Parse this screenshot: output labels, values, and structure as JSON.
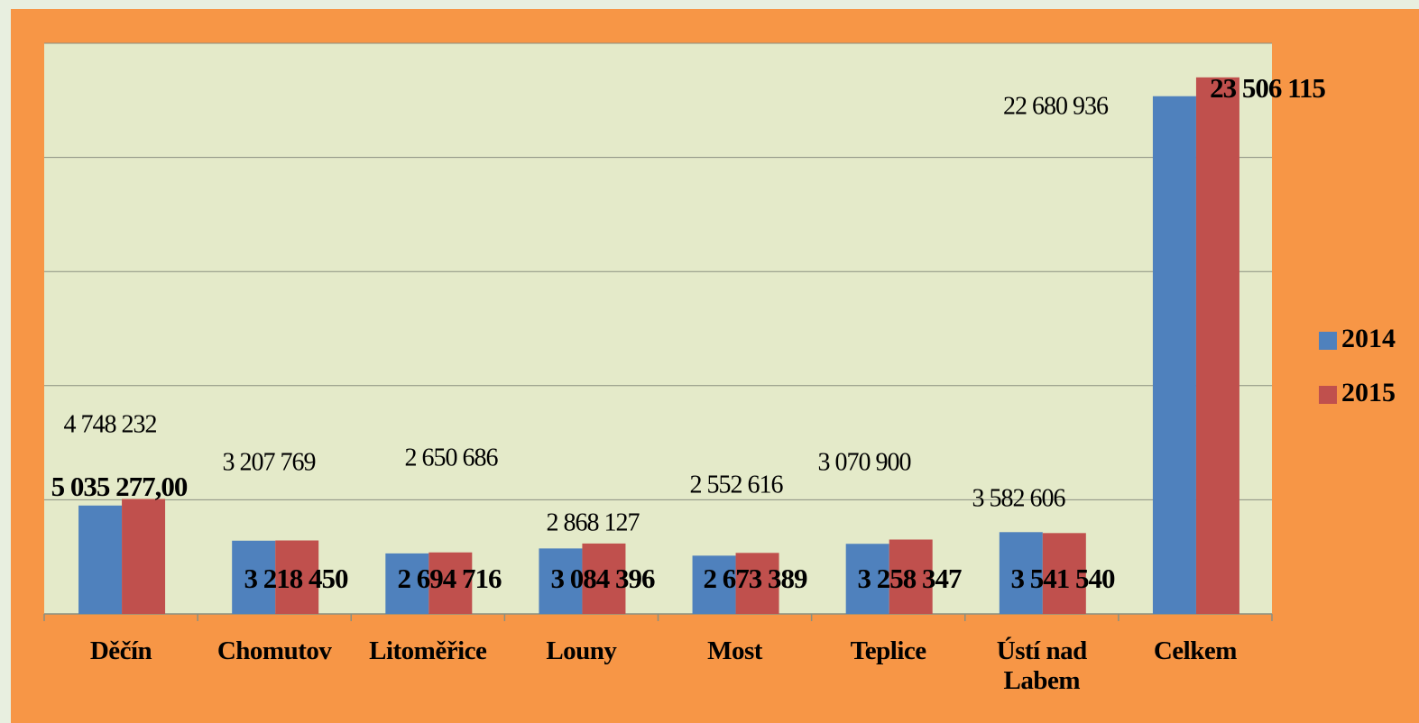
{
  "chart_data": {
    "type": "bar",
    "categories": [
      "Děčín",
      "Chomutov",
      "Litoměřice",
      "Louny",
      "Most",
      "Teplice",
      "Ústí nad Labem",
      "Celkem"
    ],
    "series": [
      {
        "name": "2014",
        "color": "#4F81BD",
        "values": [
          4748232,
          3207769,
          2650686,
          2868127,
          2552616,
          3070900,
          3582606,
          22680936
        ],
        "value_labels": [
          "4 748 232",
          "3 207 769",
          "2 650 686",
          "2 868 127",
          "2 552 616",
          "3 070 900",
          "3 582 606",
          "22 680 936"
        ]
      },
      {
        "name": "2015",
        "color": "#C0504D",
        "values": [
          5035277,
          3218450,
          2694716,
          3084396,
          2673389,
          3258347,
          3541540,
          23506115
        ],
        "value_labels": [
          "5 035 277,00",
          "3 218 450",
          "2 694 716",
          "3 084 396",
          "2 673 389",
          "3 258 347",
          "3 541 540",
          "23 506 115"
        ]
      }
    ],
    "ylim": [
      0,
      25000000
    ],
    "yticks": [
      0,
      5000000,
      10000000,
      15000000,
      20000000,
      25000000
    ],
    "grid": true,
    "legend": "right"
  }
}
